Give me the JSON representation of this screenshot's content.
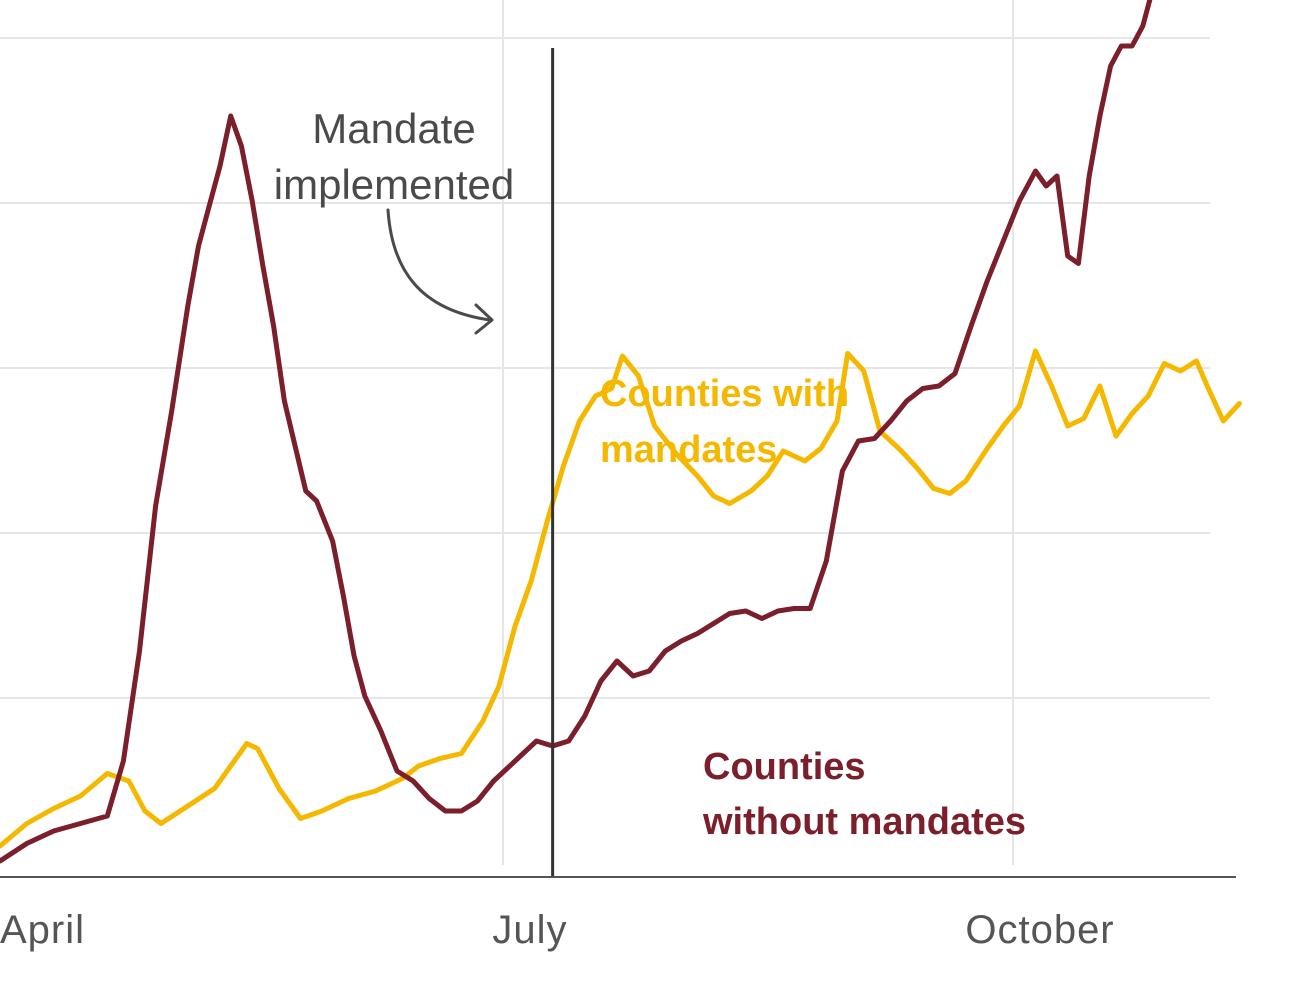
{
  "chart_data": {
    "type": "line",
    "x_ticks": [
      "April",
      "July",
      "October"
    ],
    "annotation": {
      "text_line1": "Mandate",
      "text_line2": "implemented",
      "x": 103
    },
    "series": [
      {
        "name": "Counties with mandates",
        "label_line1": "Counties with",
        "label_line2": "mandates",
        "color": "#f5b800",
        "values": [
          [
            0,
            0.6
          ],
          [
            5,
            1.05
          ],
          [
            10,
            1.35
          ],
          [
            15,
            1.6
          ],
          [
            20,
            2.05
          ],
          [
            24,
            1.9
          ],
          [
            27,
            1.3
          ],
          [
            30,
            1.05
          ],
          [
            35,
            1.4
          ],
          [
            40,
            1.75
          ],
          [
            43,
            2.2
          ],
          [
            46,
            2.65
          ],
          [
            48,
            2.55
          ],
          [
            52,
            1.75
          ],
          [
            56,
            1.15
          ],
          [
            60,
            1.3
          ],
          [
            65,
            1.55
          ],
          [
            70,
            1.7
          ],
          [
            75,
            1.95
          ],
          [
            78,
            2.2
          ],
          [
            82,
            2.35
          ],
          [
            86,
            2.45
          ],
          [
            90,
            3.1
          ],
          [
            93,
            3.8
          ],
          [
            96,
            5.0
          ],
          [
            99,
            5.9
          ],
          [
            102,
            7.1
          ],
          [
            105,
            8.2
          ],
          [
            108,
            9.1
          ],
          [
            111,
            9.6
          ],
          [
            114,
            9.75
          ],
          [
            116,
            10.4
          ],
          [
            119,
            10.0
          ],
          [
            122,
            9.0
          ],
          [
            126,
            8.45
          ],
          [
            130,
            8.0
          ],
          [
            133,
            7.6
          ],
          [
            136,
            7.45
          ],
          [
            140,
            7.7
          ],
          [
            143,
            8.0
          ],
          [
            146,
            8.5
          ],
          [
            150,
            8.3
          ],
          [
            153,
            8.55
          ],
          [
            156,
            9.1
          ],
          [
            158,
            10.45
          ],
          [
            161,
            10.1
          ],
          [
            164,
            8.9
          ],
          [
            168,
            8.5
          ],
          [
            171,
            8.15
          ],
          [
            174,
            7.75
          ],
          [
            177,
            7.65
          ],
          [
            180,
            7.9
          ],
          [
            184,
            8.55
          ],
          [
            187,
            9.0
          ],
          [
            190,
            9.4
          ],
          [
            193,
            10.5
          ],
          [
            196,
            9.8
          ],
          [
            199,
            9.0
          ],
          [
            202,
            9.15
          ],
          [
            205,
            9.8
          ],
          [
            208,
            8.8
          ],
          [
            211,
            9.25
          ],
          [
            214,
            9.6
          ],
          [
            217,
            10.25
          ],
          [
            220,
            10.1
          ],
          [
            223,
            10.3
          ],
          [
            225,
            9.8
          ],
          [
            228,
            9.1
          ],
          [
            231,
            9.45
          ]
        ]
      },
      {
        "name": "Counties without mandates",
        "label_line1": "Counties",
        "label_line2": "without mandates",
        "color": "#7a1f2b",
        "values": [
          [
            0,
            0.3
          ],
          [
            5,
            0.65
          ],
          [
            10,
            0.9
          ],
          [
            15,
            1.05
          ],
          [
            20,
            1.2
          ],
          [
            23,
            2.3
          ],
          [
            26,
            4.5
          ],
          [
            29,
            7.4
          ],
          [
            32,
            9.3
          ],
          [
            35,
            11.4
          ],
          [
            37,
            12.6
          ],
          [
            39,
            13.4
          ],
          [
            41,
            14.2
          ],
          [
            43,
            15.2
          ],
          [
            45,
            14.6
          ],
          [
            47,
            13.5
          ],
          [
            49,
            12.2
          ],
          [
            51,
            11.0
          ],
          [
            53,
            9.5
          ],
          [
            55,
            8.6
          ],
          [
            57,
            7.7
          ],
          [
            59,
            7.5
          ],
          [
            62,
            6.7
          ],
          [
            64,
            5.6
          ],
          [
            66,
            4.4
          ],
          [
            68,
            3.6
          ],
          [
            71,
            2.9
          ],
          [
            74,
            2.1
          ],
          [
            77,
            1.9
          ],
          [
            80,
            1.55
          ],
          [
            83,
            1.3
          ],
          [
            86,
            1.3
          ],
          [
            89,
            1.5
          ],
          [
            92,
            1.9
          ],
          [
            96,
            2.3
          ],
          [
            100,
            2.7
          ],
          [
            103,
            2.6
          ],
          [
            106,
            2.7
          ],
          [
            109,
            3.2
          ],
          [
            112,
            3.9
          ],
          [
            115,
            4.3
          ],
          [
            118,
            4.0
          ],
          [
            121,
            4.1
          ],
          [
            124,
            4.5
          ],
          [
            127,
            4.7
          ],
          [
            130,
            4.85
          ],
          [
            133,
            5.05
          ],
          [
            136,
            5.25
          ],
          [
            139,
            5.3
          ],
          [
            142,
            5.15
          ],
          [
            145,
            5.3
          ],
          [
            148,
            5.35
          ],
          [
            151,
            5.35
          ],
          [
            154,
            6.3
          ],
          [
            157,
            8.1
          ],
          [
            160,
            8.7
          ],
          [
            163,
            8.75
          ],
          [
            166,
            9.1
          ],
          [
            169,
            9.5
          ],
          [
            172,
            9.75
          ],
          [
            175,
            9.8
          ],
          [
            178,
            10.05
          ],
          [
            181,
            11.0
          ],
          [
            184,
            11.9
          ],
          [
            187,
            12.7
          ],
          [
            190,
            13.5
          ],
          [
            193,
            14.1
          ],
          [
            195,
            13.8
          ],
          [
            197,
            14.0
          ],
          [
            199,
            12.4
          ],
          [
            201,
            12.25
          ],
          [
            203,
            14.0
          ],
          [
            205,
            15.2
          ],
          [
            207,
            16.2
          ],
          [
            209,
            16.6
          ],
          [
            211,
            16.6
          ],
          [
            213,
            17.0
          ],
          [
            215,
            17.8
          ],
          [
            217,
            17.95
          ],
          [
            219,
            18.0
          ]
        ]
      }
    ],
    "grid": true,
    "legend": "direct-labels"
  }
}
